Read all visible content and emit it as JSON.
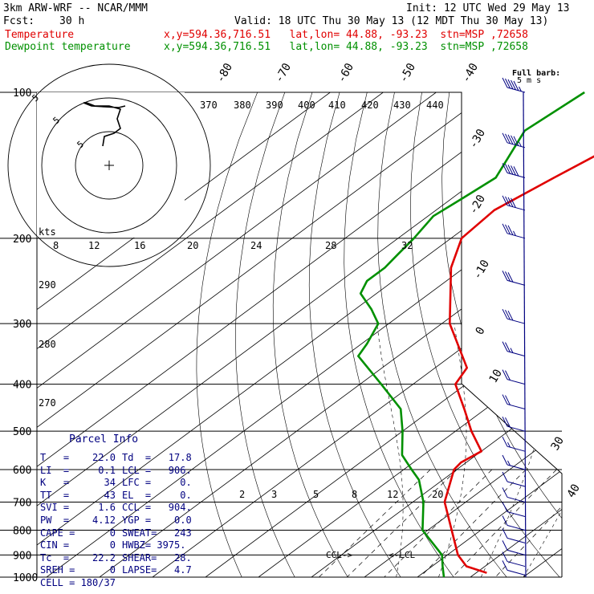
{
  "header": {
    "model": "3km ARW-WRF -- NCAR/MMM",
    "init": "Init: 12 UTC Wed 29 May 13",
    "fcst_label": "Fcst:",
    "fcst_value": "30 h",
    "valid": "Valid: 18 UTC Thu 30 May 13 (12 MDT Thu 30 May 13)",
    "temp_label": "Temperature",
    "temp_info": "x,y=594.36,716.51   lat,lon= 44.88, -93.23  stn=MSP ,72658",
    "dew_label": "Dewpoint temperature",
    "dew_info": "x,y=594.36,716.51   lat,lon= 44.88, -93.23  stn=MSP ,72658"
  },
  "wind_legend": {
    "line1": "Full barb:",
    "line2": "5 m s"
  },
  "hodograph": {
    "units": "kts",
    "ring_labels": [
      "5",
      "5",
      "5"
    ]
  },
  "parcel_info": {
    "title": "Parcel Info",
    "rows": [
      {
        "left": "T   =    22.0",
        "right": "Td  =   17.8"
      },
      {
        "left": "LI  =     0.1",
        "right": "LCL =   906."
      },
      {
        "left": "K   =      34",
        "right": "LFC =     0."
      },
      {
        "left": "TT  =      43",
        "right": "EL  =     0."
      },
      {
        "left": "SVI =     1.6",
        "right": "CCL =   904."
      },
      {
        "left": "PW  =    4.12",
        "right": "YGP =    0.0"
      },
      {
        "left": "CAPE =      0",
        "right": "SWEAT=   243"
      },
      {
        "left": "CIN =       0",
        "right": "HWBZ= 3975."
      },
      {
        "left": "Tc  =    22.2",
        "right": "SHEAR=   28."
      },
      {
        "left": "SREH =      0",
        "right": "LAPSE=   4.7"
      },
      {
        "left": "CELL = 180/37",
        "right": ""
      }
    ]
  },
  "level_markers": {
    "ccl": "CCL->",
    "lcl": "<-LCL"
  },
  "chart_data": {
    "type": "line",
    "title": "",
    "pressure_levels": [
      100,
      200,
      300,
      400,
      500,
      600,
      700,
      800,
      900,
      1000
    ],
    "isotherm_labels": [
      "-80",
      "-70",
      "-60",
      "-50",
      "-40",
      "-30",
      "-20",
      "-10",
      "0",
      "10",
      "30",
      "40"
    ],
    "theta_labels": [
      "370",
      "380",
      "390",
      "400",
      "410",
      "420",
      "430",
      "440",
      "290",
      "280",
      "270"
    ],
    "mixing_ratio_labels": [
      "2",
      "3",
      "5",
      "8",
      "12",
      "20"
    ],
    "hodo_speed_labels": [
      "8",
      "12",
      "16",
      "20",
      "24",
      "28",
      "32"
    ],
    "series": [
      {
        "name": "Temperature",
        "color": "#e00000",
        "points": [
          [
            100,
            -58.5
          ],
          [
            130,
            -63
          ],
          [
            150,
            -66
          ],
          [
            175,
            -69
          ],
          [
            200,
            -68
          ],
          [
            230,
            -62.5
          ],
          [
            300,
            -48.5
          ],
          [
            370,
            -34
          ],
          [
            400,
            -32
          ],
          [
            450,
            -24
          ],
          [
            500,
            -17
          ],
          [
            550,
            -10
          ],
          [
            580,
            -11
          ],
          [
            600,
            -10.5
          ],
          [
            700,
            -4
          ],
          [
            800,
            4.5
          ],
          [
            900,
            12
          ],
          [
            950,
            16.5
          ],
          [
            980,
            22
          ]
        ]
      },
      {
        "name": "Dewpoint temperature",
        "color": "#009000",
        "points": [
          [
            100,
            -82
          ],
          [
            120,
            -83.5
          ],
          [
            140,
            -79
          ],
          [
            150,
            -77
          ],
          [
            165,
            -78
          ],
          [
            180,
            -79
          ],
          [
            200,
            -77
          ],
          [
            215,
            -76
          ],
          [
            230,
            -75
          ],
          [
            245,
            -75
          ],
          [
            260,
            -73
          ],
          [
            280,
            -67
          ],
          [
            300,
            -62
          ],
          [
            330,
            -59
          ],
          [
            350,
            -57.5
          ],
          [
            400,
            -46
          ],
          [
            450,
            -36
          ],
          [
            500,
            -30
          ],
          [
            560,
            -24
          ],
          [
            600,
            -18.5
          ],
          [
            630,
            -14.5
          ],
          [
            700,
            -8
          ],
          [
            800,
            -1
          ],
          [
            900,
            9
          ],
          [
            950,
            12
          ],
          [
            1000,
            15
          ]
        ]
      }
    ],
    "wind_barbs": [
      {
        "p": 100,
        "spd": 55
      },
      {
        "p": 130,
        "spd": 55
      },
      {
        "p": 150,
        "spd": 50
      },
      {
        "p": 175,
        "spd": 40
      },
      {
        "p": 200,
        "spd": 35
      },
      {
        "p": 250,
        "spd": 30
      },
      {
        "p": 300,
        "spd": 30
      },
      {
        "p": 350,
        "spd": 25
      },
      {
        "p": 400,
        "spd": 20
      },
      {
        "p": 450,
        "spd": 20
      },
      {
        "p": 500,
        "spd": 20
      },
      {
        "p": 550,
        "spd": 15
      },
      {
        "p": 600,
        "spd": 15
      },
      {
        "p": 650,
        "spd": 12
      },
      {
        "p": 700,
        "spd": 10
      },
      {
        "p": 750,
        "spd": 10
      },
      {
        "p": 800,
        "spd": 10
      },
      {
        "p": 850,
        "spd": 12
      },
      {
        "p": 900,
        "spd": 12
      },
      {
        "p": 950,
        "spd": 12
      },
      {
        "p": 990,
        "spd": 12
      }
    ]
  }
}
